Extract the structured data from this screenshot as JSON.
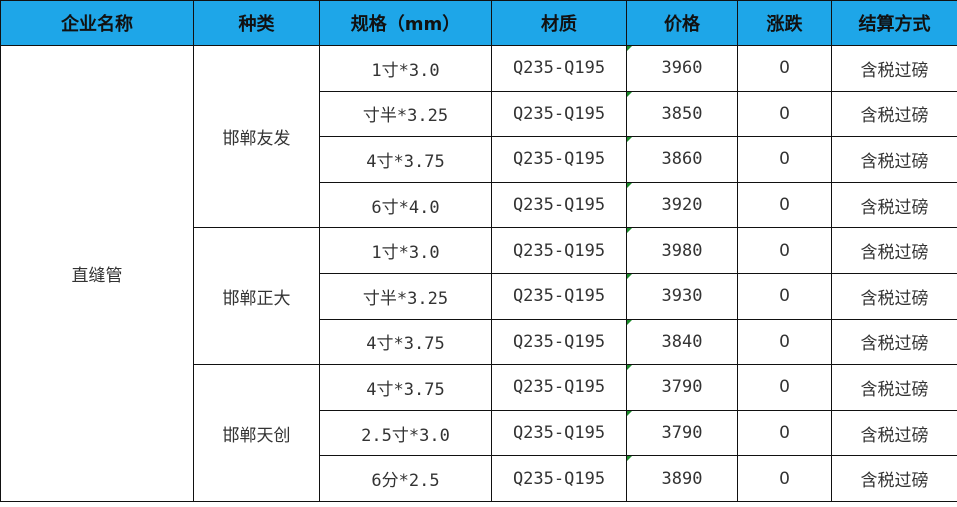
{
  "headers": [
    "企业名称",
    "种类",
    "规格（mm）",
    "材质",
    "价格",
    "涨跌",
    "结算方式"
  ],
  "company": "直缝管",
  "groups": [
    {
      "brand": "邯郸友发",
      "rows": [
        {
          "spec": "1寸*3.0",
          "material": "Q235-Q195",
          "price": "3960",
          "change": "0",
          "settlement": "含税过磅"
        },
        {
          "spec": "寸半*3.25",
          "material": "Q235-Q195",
          "price": "3850",
          "change": "0",
          "settlement": "含税过磅"
        },
        {
          "spec": "4寸*3.75",
          "material": "Q235-Q195",
          "price": "3860",
          "change": "0",
          "settlement": "含税过磅"
        },
        {
          "spec": "6寸*4.0",
          "material": "Q235-Q195",
          "price": "3920",
          "change": "0",
          "settlement": "含税过磅"
        }
      ]
    },
    {
      "brand": "邯郸正大",
      "rows": [
        {
          "spec": "1寸*3.0",
          "material": "Q235-Q195",
          "price": "3980",
          "change": "0",
          "settlement": "含税过磅"
        },
        {
          "spec": "寸半*3.25",
          "material": "Q235-Q195",
          "price": "3930",
          "change": "0",
          "settlement": "含税过磅"
        },
        {
          "spec": "4寸*3.75",
          "material": "Q235-Q195",
          "price": "3840",
          "change": "0",
          "settlement": "含税过磅"
        }
      ]
    },
    {
      "brand": "邯郸天创",
      "rows": [
        {
          "spec": "4寸*3.75",
          "material": "Q235-Q195",
          "price": "3790",
          "change": "0",
          "settlement": "含税过磅"
        },
        {
          "spec": "2.5寸*3.0",
          "material": "Q235-Q195",
          "price": "3790",
          "change": "0",
          "settlement": "含税过磅"
        },
        {
          "spec": "6分*2.5",
          "material": "Q235-Q195",
          "price": "3890",
          "change": "0",
          "settlement": "含税过磅"
        }
      ]
    }
  ],
  "colors": {
    "header_bg": "#1ea6e8",
    "border": "#111111"
  }
}
